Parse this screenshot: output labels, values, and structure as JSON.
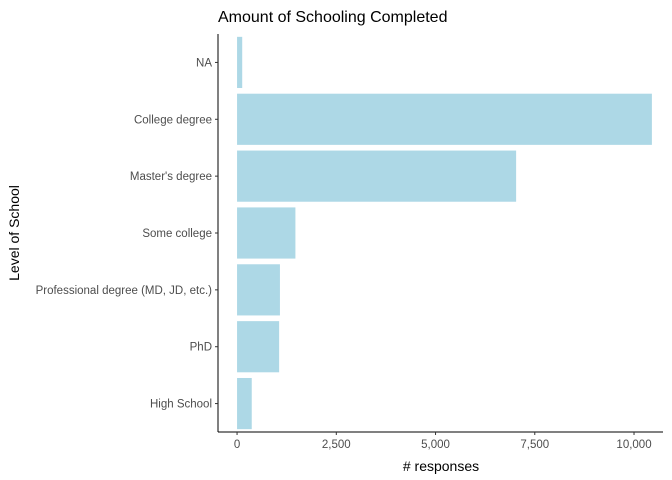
{
  "chart_data": {
    "type": "bar",
    "orientation": "horizontal",
    "title": "Amount of Schooling Completed",
    "xlabel": "# responses",
    "ylabel": "Level of School",
    "categories": [
      "NA",
      "College degree",
      "Master's degree",
      "Some college",
      "Professional degree (MD, JD, etc.)",
      "PhD",
      "High School"
    ],
    "values": [
      130,
      10450,
      7030,
      1470,
      1080,
      1060,
      370
    ],
    "xlim": [
      -480,
      10730
    ],
    "xticks": [
      0,
      2500,
      5000,
      7500,
      10000
    ],
    "xtick_labels": [
      "0",
      "2,500",
      "5,000",
      "7,500",
      "10,000"
    ],
    "bar_color": "#add8e6",
    "grid": false,
    "legend": "none"
  }
}
